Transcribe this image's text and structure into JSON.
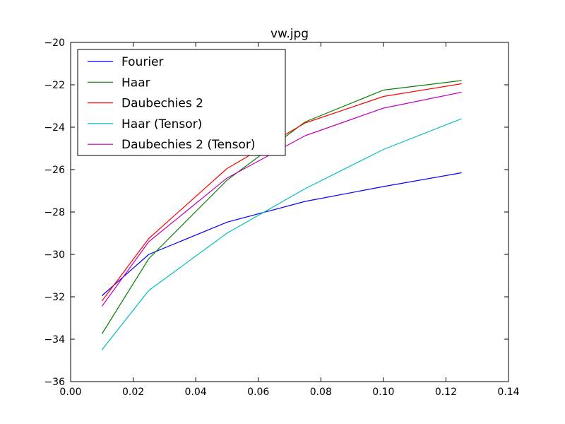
{
  "chart_data": {
    "type": "line",
    "title": "vw.jpg",
    "xlabel": "",
    "ylabel": "",
    "xlim": [
      0.0,
      0.14
    ],
    "ylim": [
      -36,
      -20
    ],
    "xticks": [
      0.0,
      0.02,
      0.04,
      0.06,
      0.08,
      0.1,
      0.12,
      0.14
    ],
    "xtick_labels": [
      "0.00",
      "0.02",
      "0.04",
      "0.06",
      "0.08",
      "0.10",
      "0.12",
      "0.14"
    ],
    "yticks": [
      -20,
      -22,
      -24,
      -26,
      -28,
      -30,
      -32,
      -34,
      -36
    ],
    "ytick_labels": [
      "−20",
      "−22",
      "−24",
      "−26",
      "−28",
      "−30",
      "−32",
      "−34",
      "−36"
    ],
    "grid": false,
    "legend_position": "top-left",
    "x": [
      0.01,
      0.025,
      0.05,
      0.075,
      0.1,
      0.125
    ],
    "series": [
      {
        "name": "Fourier",
        "color": "#0000ff",
        "values": [
          -31.95,
          -30.0,
          -28.48,
          -27.5,
          -26.8,
          -26.15
        ]
      },
      {
        "name": "Haar",
        "color": "#008000",
        "values": [
          -33.75,
          -30.2,
          -26.5,
          -23.75,
          -22.25,
          -21.8
        ]
      },
      {
        "name": "Daubechies 2",
        "color": "#ff0000",
        "values": [
          -32.2,
          -29.25,
          -25.95,
          -23.8,
          -22.55,
          -21.95
        ]
      },
      {
        "name": "Haar (Tensor)",
        "color": "#00bfbf",
        "values": [
          -34.5,
          -31.7,
          -29.0,
          -26.9,
          -25.05,
          -23.6
        ]
      },
      {
        "name": "Daubechies 2 (Tensor)",
        "color": "#bf00bf",
        "values": [
          -32.45,
          -29.4,
          -26.4,
          -24.4,
          -23.1,
          -22.35
        ]
      }
    ]
  }
}
